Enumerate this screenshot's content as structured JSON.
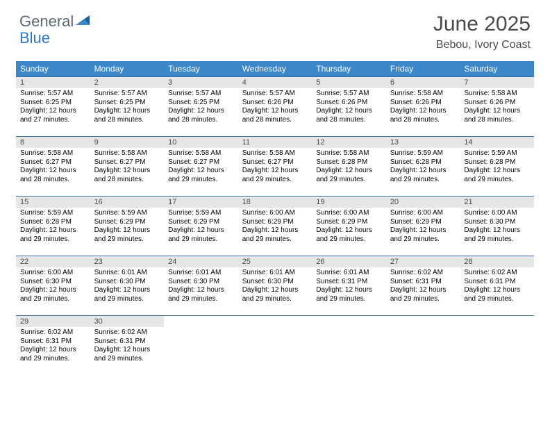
{
  "brand": {
    "word1": "General",
    "word2": "Blue"
  },
  "title": "June 2025",
  "location": "Bebou, Ivory Coast",
  "colors": {
    "header_bg": "#3b87c8",
    "header_text": "#ffffff",
    "daynum_bg": "#e6e6e6",
    "row_border": "#3b6fa0",
    "brand_gray": "#5a6a72",
    "brand_blue": "#2f78c2",
    "text": "#000000",
    "title_color": "#4a4a4a"
  },
  "columns": [
    "Sunday",
    "Monday",
    "Tuesday",
    "Wednesday",
    "Thursday",
    "Friday",
    "Saturday"
  ],
  "weeks": [
    [
      {
        "n": "1",
        "sunrise": "5:57 AM",
        "sunset": "6:25 PM",
        "daylight": "12 hours and 27 minutes."
      },
      {
        "n": "2",
        "sunrise": "5:57 AM",
        "sunset": "6:25 PM",
        "daylight": "12 hours and 28 minutes."
      },
      {
        "n": "3",
        "sunrise": "5:57 AM",
        "sunset": "6:25 PM",
        "daylight": "12 hours and 28 minutes."
      },
      {
        "n": "4",
        "sunrise": "5:57 AM",
        "sunset": "6:26 PM",
        "daylight": "12 hours and 28 minutes."
      },
      {
        "n": "5",
        "sunrise": "5:57 AM",
        "sunset": "6:26 PM",
        "daylight": "12 hours and 28 minutes."
      },
      {
        "n": "6",
        "sunrise": "5:58 AM",
        "sunset": "6:26 PM",
        "daylight": "12 hours and 28 minutes."
      },
      {
        "n": "7",
        "sunrise": "5:58 AM",
        "sunset": "6:26 PM",
        "daylight": "12 hours and 28 minutes."
      }
    ],
    [
      {
        "n": "8",
        "sunrise": "5:58 AM",
        "sunset": "6:27 PM",
        "daylight": "12 hours and 28 minutes."
      },
      {
        "n": "9",
        "sunrise": "5:58 AM",
        "sunset": "6:27 PM",
        "daylight": "12 hours and 28 minutes."
      },
      {
        "n": "10",
        "sunrise": "5:58 AM",
        "sunset": "6:27 PM",
        "daylight": "12 hours and 29 minutes."
      },
      {
        "n": "11",
        "sunrise": "5:58 AM",
        "sunset": "6:27 PM",
        "daylight": "12 hours and 29 minutes."
      },
      {
        "n": "12",
        "sunrise": "5:58 AM",
        "sunset": "6:28 PM",
        "daylight": "12 hours and 29 minutes."
      },
      {
        "n": "13",
        "sunrise": "5:59 AM",
        "sunset": "6:28 PM",
        "daylight": "12 hours and 29 minutes."
      },
      {
        "n": "14",
        "sunrise": "5:59 AM",
        "sunset": "6:28 PM",
        "daylight": "12 hours and 29 minutes."
      }
    ],
    [
      {
        "n": "15",
        "sunrise": "5:59 AM",
        "sunset": "6:28 PM",
        "daylight": "12 hours and 29 minutes."
      },
      {
        "n": "16",
        "sunrise": "5:59 AM",
        "sunset": "6:29 PM",
        "daylight": "12 hours and 29 minutes."
      },
      {
        "n": "17",
        "sunrise": "5:59 AM",
        "sunset": "6:29 PM",
        "daylight": "12 hours and 29 minutes."
      },
      {
        "n": "18",
        "sunrise": "6:00 AM",
        "sunset": "6:29 PM",
        "daylight": "12 hours and 29 minutes."
      },
      {
        "n": "19",
        "sunrise": "6:00 AM",
        "sunset": "6:29 PM",
        "daylight": "12 hours and 29 minutes."
      },
      {
        "n": "20",
        "sunrise": "6:00 AM",
        "sunset": "6:29 PM",
        "daylight": "12 hours and 29 minutes."
      },
      {
        "n": "21",
        "sunrise": "6:00 AM",
        "sunset": "6:30 PM",
        "daylight": "12 hours and 29 minutes."
      }
    ],
    [
      {
        "n": "22",
        "sunrise": "6:00 AM",
        "sunset": "6:30 PM",
        "daylight": "12 hours and 29 minutes."
      },
      {
        "n": "23",
        "sunrise": "6:01 AM",
        "sunset": "6:30 PM",
        "daylight": "12 hours and 29 minutes."
      },
      {
        "n": "24",
        "sunrise": "6:01 AM",
        "sunset": "6:30 PM",
        "daylight": "12 hours and 29 minutes."
      },
      {
        "n": "25",
        "sunrise": "6:01 AM",
        "sunset": "6:30 PM",
        "daylight": "12 hours and 29 minutes."
      },
      {
        "n": "26",
        "sunrise": "6:01 AM",
        "sunset": "6:31 PM",
        "daylight": "12 hours and 29 minutes."
      },
      {
        "n": "27",
        "sunrise": "6:02 AM",
        "sunset": "6:31 PM",
        "daylight": "12 hours and 29 minutes."
      },
      {
        "n": "28",
        "sunrise": "6:02 AM",
        "sunset": "6:31 PM",
        "daylight": "12 hours and 29 minutes."
      }
    ],
    [
      {
        "n": "29",
        "sunrise": "6:02 AM",
        "sunset": "6:31 PM",
        "daylight": "12 hours and 29 minutes."
      },
      {
        "n": "30",
        "sunrise": "6:02 AM",
        "sunset": "6:31 PM",
        "daylight": "12 hours and 29 minutes."
      },
      null,
      null,
      null,
      null,
      null
    ]
  ],
  "labels": {
    "sunrise": "Sunrise:",
    "sunset": "Sunset:",
    "daylight": "Daylight:"
  }
}
